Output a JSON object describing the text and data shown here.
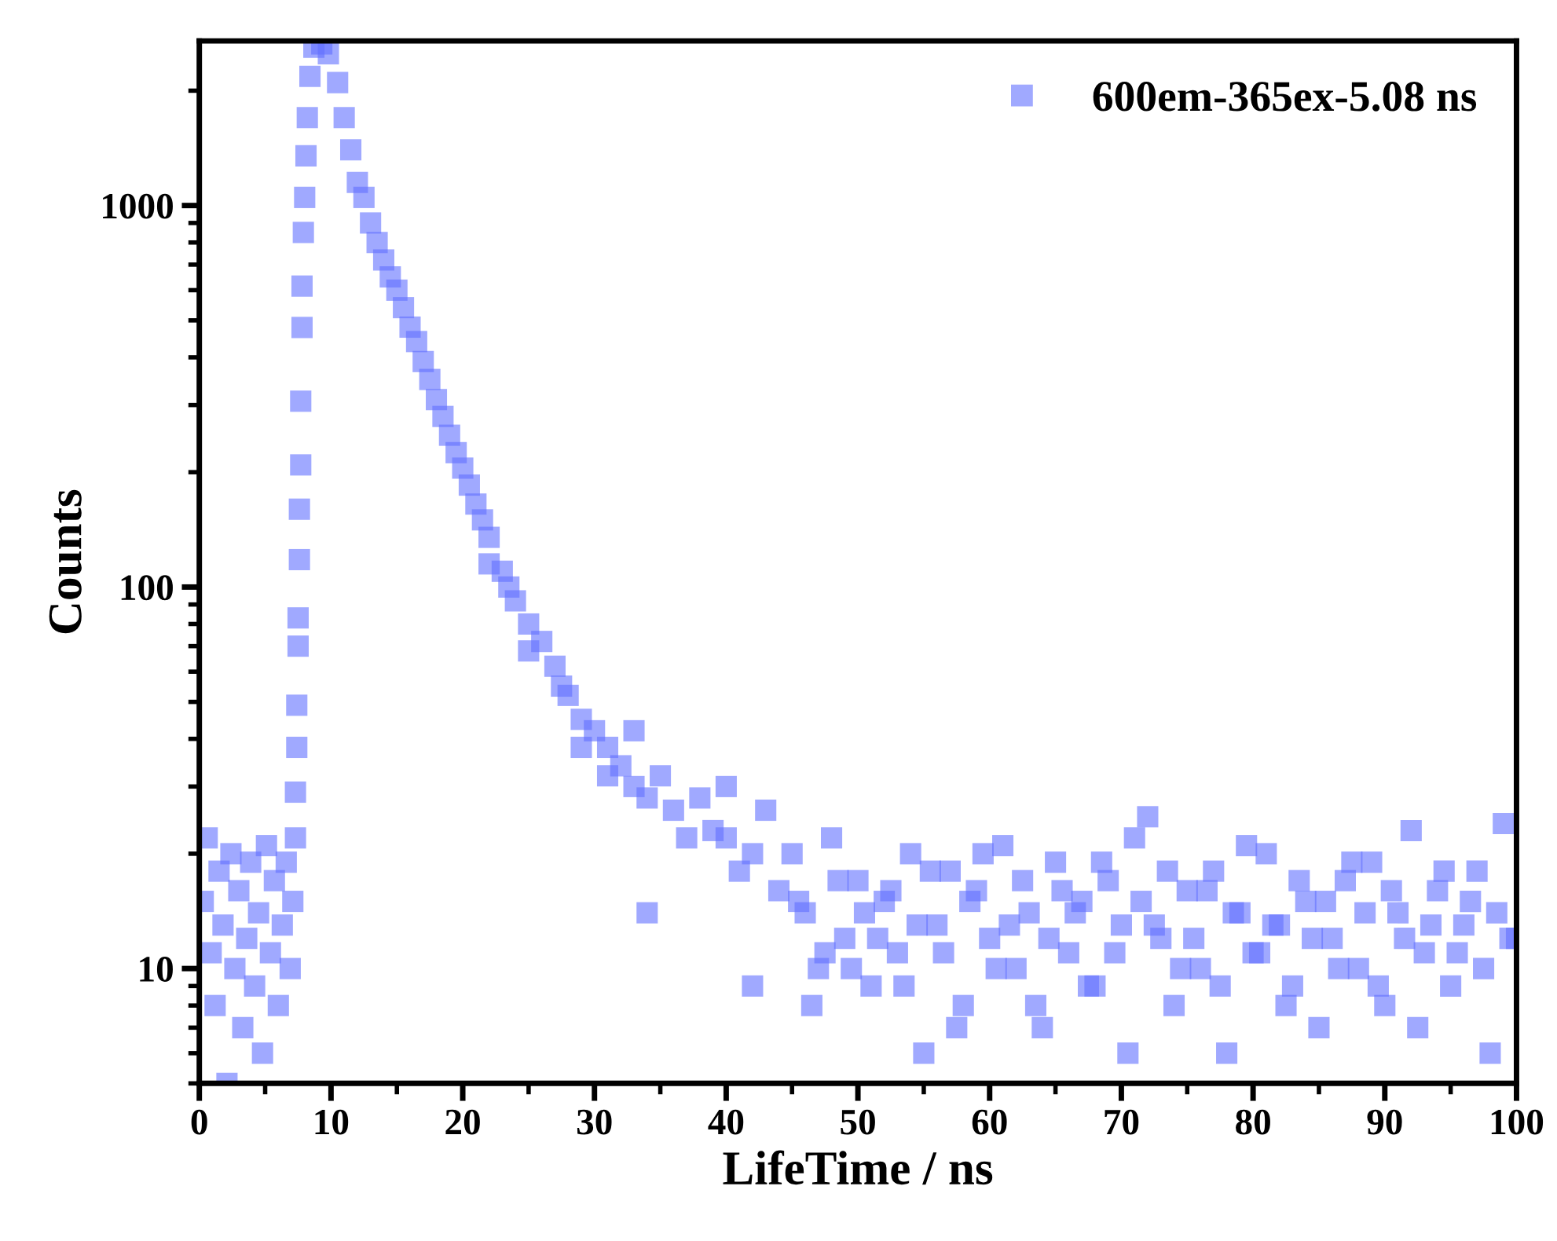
{
  "chart_data": {
    "type": "scatter",
    "xlabel": "LifeTime / ns",
    "ylabel": "Counts",
    "log": "y",
    "xlim": [
      0,
      100
    ],
    "xticks": [
      0,
      10,
      20,
      30,
      40,
      50,
      60,
      70,
      80,
      90,
      100
    ],
    "ylim": [
      5,
      2700
    ],
    "yticks": [
      10,
      100,
      1000
    ],
    "legend": "top right",
    "marker": "square",
    "grid": false,
    "series": [
      {
        "name": "600em-365ex-5.08 ns",
        "color": "#6170ff",
        "x": [
          0.3,
          0.6,
          0.9,
          1.2,
          1.5,
          1.8,
          2.1,
          2.4,
          2.7,
          3,
          3.3,
          3.6,
          3.9,
          4.2,
          4.5,
          4.8,
          5.1,
          5.4,
          5.7,
          6,
          6.3,
          6.6,
          6.9,
          7.1,
          7.3,
          7.3,
          7.4,
          7.4,
          7.5,
          7.5,
          7.6,
          7.6,
          7.7,
          7.7,
          7.8,
          7.8,
          7.9,
          8.0,
          8.1,
          8.2,
          8.4,
          8.7,
          9.3,
          9.8,
          10.5,
          11,
          11.5,
          12,
          12.5,
          13,
          13.5,
          14,
          14.5,
          15,
          15.5,
          16,
          16.5,
          17,
          17.5,
          18,
          18.5,
          19,
          19.5,
          20,
          20.5,
          21,
          21.5,
          22,
          22,
          23,
          23.5,
          24,
          25,
          25,
          26,
          27,
          27.5,
          28,
          29,
          29,
          30,
          31,
          31,
          32,
          33,
          33,
          34,
          34,
          35,
          36,
          37,
          38,
          39,
          40,
          40,
          41,
          42,
          42,
          43,
          44,
          45,
          46,
          47,
          48,
          49,
          50,
          51,
          52,
          53,
          54,
          55,
          56,
          57,
          58,
          59,
          60,
          61,
          62,
          63,
          64,
          65,
          66,
          67,
          68,
          69,
          70,
          71,
          72,
          73,
          74,
          75,
          76,
          77,
          78,
          79,
          80,
          81,
          82,
          83,
          84,
          85,
          86,
          87,
          88,
          89,
          90,
          91,
          92,
          93,
          94,
          95,
          96,
          97,
          98,
          99,
          100,
          45.5,
          46.5,
          47.5,
          48.5,
          49.5,
          50.5,
          51.5,
          52.5,
          53.5,
          54.5,
          55.5,
          56.5,
          57.5,
          58.5,
          59.5,
          60.5,
          61.5,
          62.5,
          63.5,
          64.5,
          65.5,
          66.5,
          67.5,
          68.5,
          69.5,
          70.5,
          71.5,
          72.5,
          73.5,
          74.5,
          75.5,
          76.5,
          77.5,
          78.5,
          79.5,
          80.5,
          81.5,
          82.5,
          83.5,
          84.5,
          85.5,
          86.5,
          87.5,
          88.5,
          89.5,
          90.5,
          91.5,
          92.5,
          93.5,
          94.5,
          95.5,
          96.5,
          97.5,
          98.5,
          99.5
        ],
        "values": [
          15,
          22,
          11,
          8,
          18,
          13,
          5,
          20,
          10,
          16,
          7,
          12,
          19,
          9,
          14,
          6,
          21,
          11,
          17,
          8,
          13,
          19,
          10,
          15,
          22,
          29,
          38,
          49,
          70,
          83,
          118,
          160,
          209,
          307,
          479,
          615,
          850,
          1050,
          1350,
          1700,
          2180,
          2600,
          2650,
          2500,
          2100,
          1700,
          1400,
          1150,
          1050,
          900,
          800,
          720,
          650,
          600,
          540,
          480,
          440,
          390,
          350,
          310,
          280,
          250,
          225,
          205,
          185,
          165,
          150,
          135,
          115,
          110,
          100,
          92,
          80,
          68,
          72,
          62,
          55,
          52,
          45,
          38,
          42,
          38,
          32,
          34,
          30,
          42,
          28,
          14,
          32,
          26,
          22,
          28,
          23,
          22,
          30,
          18,
          20,
          9,
          26,
          16,
          20,
          14,
          10,
          22,
          12,
          17,
          9,
          15,
          11,
          20,
          6,
          13,
          18,
          8,
          16,
          12,
          21,
          10,
          14,
          7,
          19,
          11,
          15,
          9,
          17,
          13,
          22,
          25,
          12,
          8,
          16,
          10,
          18,
          6,
          14,
          11,
          20,
          13,
          9,
          15,
          7,
          12,
          17,
          10,
          19,
          8,
          14,
          23,
          11,
          16,
          9,
          13,
          18,
          6,
          24,
          12,
          15,
          8,
          11,
          17,
          10,
          14,
          12,
          16,
          9,
          13,
          18,
          11,
          7,
          15,
          20,
          10,
          13,
          17,
          8,
          12,
          16,
          14,
          9,
          19,
          11,
          6,
          15,
          13,
          18,
          10,
          12,
          16,
          9,
          14,
          21,
          11,
          13,
          8,
          17,
          12,
          15,
          10,
          19,
          14,
          9,
          16,
          12,
          7,
          13,
          18,
          11,
          15,
          10,
          14,
          12
        ]
      }
    ]
  }
}
